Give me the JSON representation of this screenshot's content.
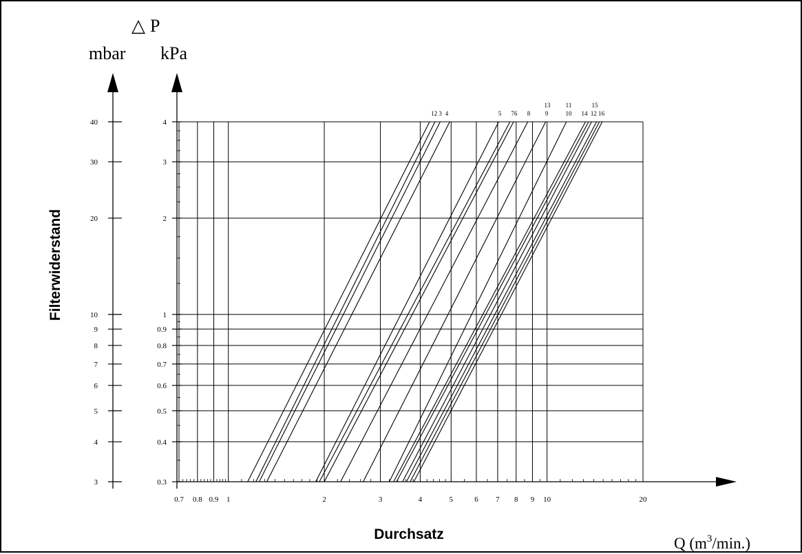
{
  "chart_data": {
    "type": "line",
    "title": "",
    "delta_symbol": "△",
    "delta_var": "P",
    "ylabel": "Filterwiderstand",
    "xlabel": "Durchsatz",
    "x_unit_prefix": "Q (m",
    "x_unit_exp": "3",
    "x_unit_suffix": "/min.)",
    "y_unit_mbar": "mbar",
    "y_unit_kpa": "kPa",
    "x_scale": "log",
    "y_scale": "log",
    "xlim": [
      0.7,
      20
    ],
    "ylim_kpa": [
      0.3,
      4
    ],
    "x_ticks": [
      0.7,
      0.8,
      0.9,
      1,
      2,
      3,
      4,
      5,
      6,
      7,
      8,
      9,
      10,
      20
    ],
    "x_tick_labels": [
      "0.7",
      "0.8",
      "0.9",
      "1",
      "2",
      "3",
      "4",
      "5",
      "6",
      "7",
      "8",
      "9",
      "10",
      "20"
    ],
    "y_ticks_kpa": [
      0.3,
      0.4,
      0.5,
      0.6,
      0.7,
      0.8,
      0.9,
      1,
      2,
      3,
      4
    ],
    "y_tick_labels_kpa": [
      "0.3",
      "0.4",
      "0.5",
      "0.6",
      "0.7",
      "0.8",
      "0.9",
      "1",
      "2",
      "3",
      "4"
    ],
    "y_tick_labels_mbar": [
      "3",
      "4",
      "5",
      "6",
      "7",
      "8",
      "9",
      "10",
      "20",
      "30",
      "40"
    ],
    "grid": true,
    "series": [
      {
        "name": "1",
        "x_at_min": 1.15,
        "x_at_max": 4.28
      },
      {
        "name": "2",
        "x_at_min": 1.22,
        "x_at_max": 4.45
      },
      {
        "name": "3",
        "x_at_min": 1.25,
        "x_at_max": 4.62
      },
      {
        "name": "4",
        "x_at_min": 1.32,
        "x_at_max": 4.95
      },
      {
        "name": "5",
        "x_at_min": 1.88,
        "x_at_max": 7.05
      },
      {
        "name": "7",
        "x_at_min": 1.93,
        "x_at_max": 7.65
      },
      {
        "name": "6",
        "x_at_min": 2.0,
        "x_at_max": 7.85
      },
      {
        "name": "8",
        "x_at_min": 2.25,
        "x_at_max": 8.7
      },
      {
        "name": "9",
        "x_at_min": 2.65,
        "x_at_max": 9.9
      },
      {
        "name": "10",
        "x_at_min": 3.2,
        "x_at_max": 11.5
      },
      {
        "name": "14",
        "x_at_min": 3.3,
        "x_at_max": 13.2
      },
      {
        "name": "13",
        "x_at_min": 3.37,
        "x_at_max": 13.5
      },
      {
        "name": "11",
        "x_at_min": 3.52,
        "x_at_max": 13.8
      },
      {
        "name": "12",
        "x_at_min": 3.62,
        "x_at_max": 14.3
      },
      {
        "name": "15",
        "x_at_min": 3.72,
        "x_at_max": 14.6
      },
      {
        "name": "16",
        "x_at_min": 3.82,
        "x_at_max": 14.9
      }
    ],
    "curve_labels_row1": [
      "12",
      "3",
      "4",
      "5",
      "76",
      "8",
      "9",
      "10",
      "14",
      "12",
      "16"
    ],
    "curve_labels_row2": [
      "13",
      "11",
      "15"
    ]
  }
}
